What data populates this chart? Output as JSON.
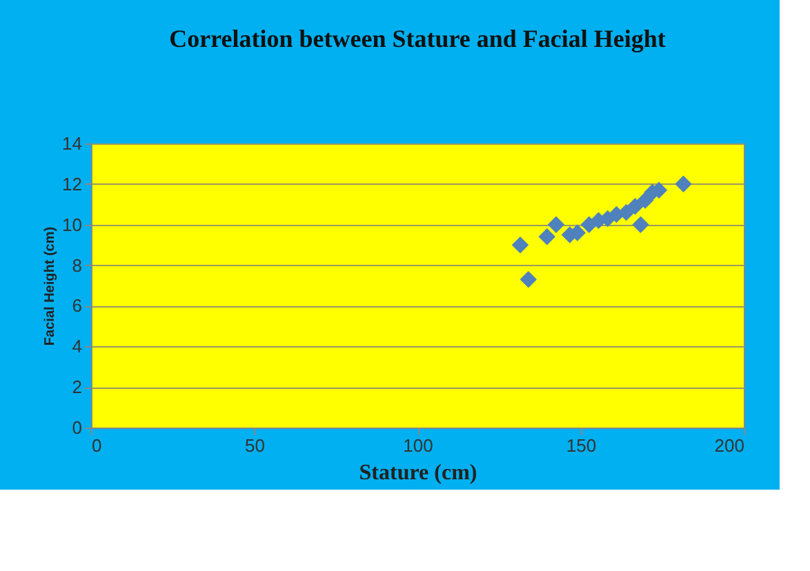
{
  "chart_data": {
    "type": "scatter",
    "title": "Correlation between Stature and Facial Height",
    "xlabel": "Stature (cm)",
    "ylabel": "Facial Height (cm)",
    "x": [
      131.5,
      134,
      139.7,
      142.5,
      146.7,
      149,
      152.6,
      155.5,
      158.3,
      161,
      164,
      166.7,
      168.4,
      169.8,
      172,
      174,
      181.5
    ],
    "series": [
      {
        "color": "#4f81bd",
        "values": [
          9.0,
          7.3,
          9.4,
          10.0,
          9.5,
          9.6,
          10.0,
          10.2,
          10.3,
          10.5,
          10.6,
          10.9,
          10.0,
          11.2,
          11.6,
          11.7,
          12.0
        ]
      }
    ],
    "xlim": [
      0,
      200
    ],
    "xticks": [
      0,
      50,
      100,
      150,
      200
    ],
    "ylim": [
      0,
      14
    ],
    "yticks": [
      0,
      2,
      4,
      6,
      8,
      10,
      12,
      14
    ],
    "grid": "y",
    "marker": "diamond"
  }
}
